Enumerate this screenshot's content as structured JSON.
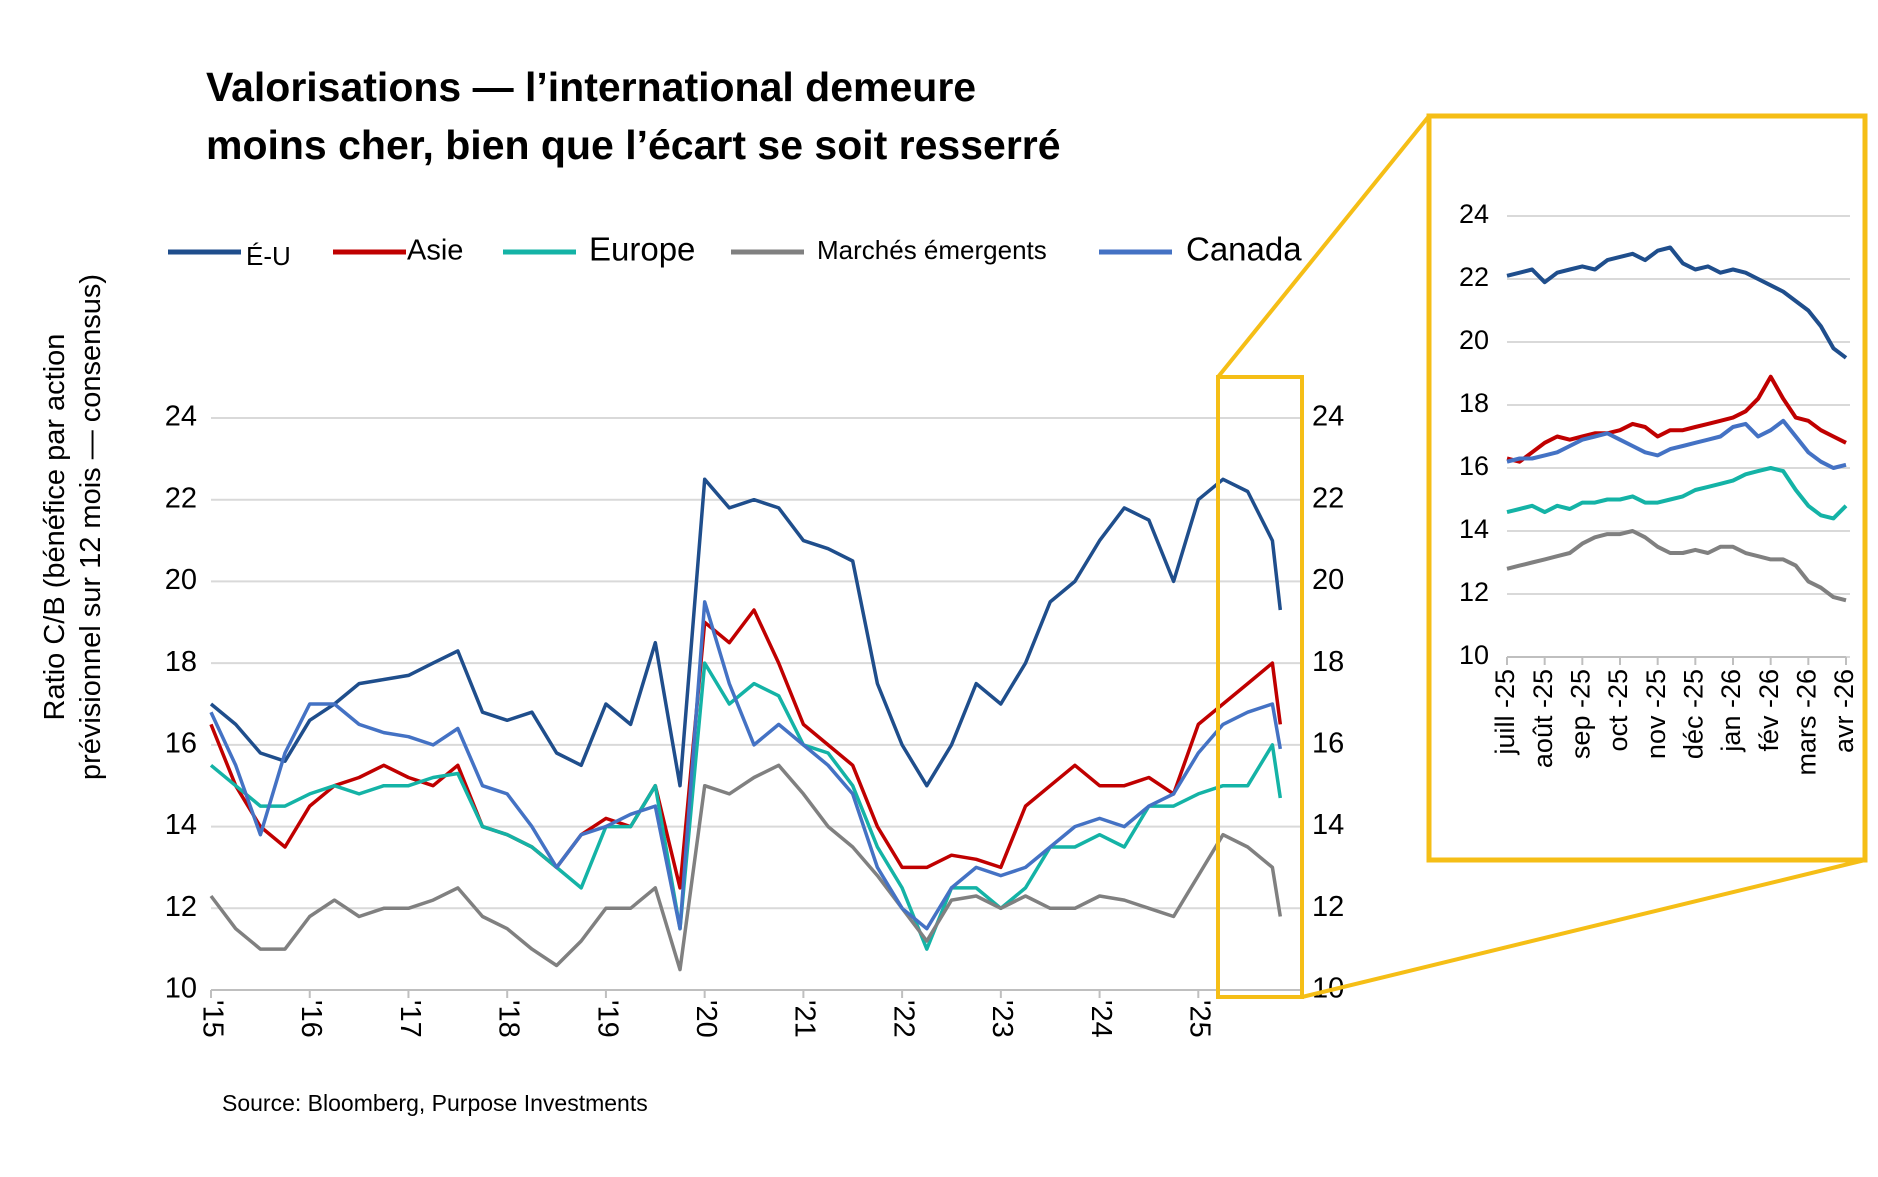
{
  "chart_data": [
    {
      "type": "line",
      "title": "Valorisations — l’international demeure\nmoins cher, bien que l’écart se soit resserré",
      "ylabel": "Ratio C/B (bénéfice par action\nprévisionnel sur 12 mois — consensus)",
      "source": "Source: Bloomberg, Purpose Investments",
      "x": [
        2015,
        2015.25,
        2015.5,
        2015.75,
        2016,
        2016.25,
        2016.5,
        2016.75,
        2017,
        2017.25,
        2017.5,
        2017.75,
        2018,
        2018.25,
        2018.5,
        2018.75,
        2019,
        2019.25,
        2019.5,
        2019.75,
        2020,
        2020.25,
        2020.5,
        2020.75,
        2021,
        2021.25,
        2021.5,
        2021.75,
        2022,
        2022.25,
        2022.5,
        2022.75,
        2023,
        2023.25,
        2023.5,
        2023.75,
        2024,
        2024.25,
        2024.5,
        2024.75,
        2025,
        2025.25,
        2025.5,
        2025.75,
        2025.83
      ],
      "xlim": [
        2015,
        2026.03
      ],
      "xticks": [
        {
          "value": 2015,
          "label": "'15"
        },
        {
          "value": 2016,
          "label": "'16"
        },
        {
          "value": 2017,
          "label": "'17"
        },
        {
          "value": 2018,
          "label": "'18"
        },
        {
          "value": 2019,
          "label": "'19"
        },
        {
          "value": 2020,
          "label": "'20"
        },
        {
          "value": 2021,
          "label": "'21"
        },
        {
          "value": 2022,
          "label": "'22"
        },
        {
          "value": 2023,
          "label": "'23"
        },
        {
          "value": 2024,
          "label": "'24"
        },
        {
          "value": 2025,
          "label": "'25"
        }
      ],
      "ylim": [
        10,
        24
      ],
      "yticks": [
        10,
        12,
        14,
        16,
        18,
        20,
        22,
        24
      ],
      "y2lim": [
        10,
        24
      ],
      "y2ticks": [
        10,
        12,
        14,
        16,
        18,
        20,
        22,
        24
      ],
      "grid": true,
      "series": [
        {
          "name": "É-U",
          "color": "#1f4e8c",
          "values": [
            17.0,
            16.5,
            15.8,
            15.6,
            16.6,
            17.0,
            17.5,
            17.6,
            17.7,
            18.0,
            18.3,
            16.8,
            16.6,
            16.8,
            15.8,
            15.5,
            17.0,
            16.5,
            18.5,
            15.0,
            22.5,
            21.8,
            22.0,
            21.8,
            21.0,
            20.8,
            20.5,
            17.5,
            16.0,
            15.0,
            16.0,
            17.5,
            17.0,
            18.0,
            19.5,
            20.0,
            21.0,
            21.8,
            21.5,
            20.0,
            22.0,
            22.5,
            22.2,
            21.0,
            19.3
          ]
        },
        {
          "name": "Asie",
          "color": "#c00000",
          "values": [
            16.5,
            15.0,
            14.0,
            13.5,
            14.5,
            15.0,
            15.2,
            15.5,
            15.2,
            15.0,
            15.5,
            14.0,
            13.8,
            13.5,
            13.0,
            13.8,
            14.2,
            14.0,
            15.0,
            12.5,
            19.0,
            18.5,
            19.3,
            18.0,
            16.5,
            16.0,
            15.5,
            14.0,
            13.0,
            13.0,
            13.3,
            13.2,
            13.0,
            14.5,
            15.0,
            15.5,
            15.0,
            15.0,
            15.2,
            14.8,
            16.5,
            17.0,
            17.5,
            18.0,
            16.5
          ]
        },
        {
          "name": "Europe",
          "color": "#14b3a6",
          "values": [
            15.5,
            15.0,
            14.5,
            14.5,
            14.8,
            15.0,
            14.8,
            15.0,
            15.0,
            15.2,
            15.3,
            14.0,
            13.8,
            13.5,
            13.0,
            12.5,
            14.0,
            14.0,
            15.0,
            11.5,
            18.0,
            17.0,
            17.5,
            17.2,
            16.0,
            15.8,
            15.0,
            13.5,
            12.5,
            11.0,
            12.5,
            12.5,
            12.0,
            12.5,
            13.5,
            13.5,
            13.8,
            13.5,
            14.5,
            14.5,
            14.8,
            15.0,
            15.0,
            16.0,
            14.7
          ]
        },
        {
          "name": "Marchés émergents",
          "color": "#808080",
          "values": [
            12.3,
            11.5,
            11.0,
            11.0,
            11.8,
            12.2,
            11.8,
            12.0,
            12.0,
            12.2,
            12.5,
            11.8,
            11.5,
            11.0,
            10.6,
            11.2,
            12.0,
            12.0,
            12.5,
            10.5,
            15.0,
            14.8,
            15.2,
            15.5,
            14.8,
            14.0,
            13.5,
            12.8,
            12.0,
            11.2,
            12.2,
            12.3,
            12.0,
            12.3,
            12.0,
            12.0,
            12.3,
            12.2,
            12.0,
            11.8,
            12.8,
            13.8,
            13.5,
            13.0,
            11.8
          ]
        },
        {
          "name": "Canada",
          "color": "#4472c4",
          "values": [
            16.8,
            15.5,
            13.8,
            15.8,
            17.0,
            17.0,
            16.5,
            16.3,
            16.2,
            16.0,
            16.4,
            15.0,
            14.8,
            14.0,
            13.0,
            13.8,
            14.0,
            14.3,
            14.5,
            11.5,
            19.5,
            17.5,
            16.0,
            16.5,
            16.0,
            15.5,
            14.8,
            13.0,
            12.0,
            11.5,
            12.5,
            13.0,
            12.8,
            13.0,
            13.5,
            14.0,
            14.2,
            14.0,
            14.5,
            14.8,
            15.8,
            16.5,
            16.8,
            17.0,
            15.9
          ]
        }
      ]
    },
    {
      "type": "line",
      "categories": [
        "juill -25",
        null,
        null,
        "août -25",
        null,
        null,
        "sep -25",
        null,
        null,
        "oct -25",
        null,
        null,
        "nov -25",
        null,
        null,
        "déc -25",
        null,
        null,
        "jan -26",
        null,
        null,
        "fév -26",
        null,
        null,
        "mars -26",
        null,
        null,
        "avr -26"
      ],
      "ylim": [
        10,
        24
      ],
      "yticks": [
        10,
        12,
        14,
        16,
        18,
        20,
        22,
        24
      ],
      "grid": true,
      "series": [
        {
          "color": "#1f4e8c",
          "values": [
            22.1,
            22.2,
            22.3,
            21.9,
            22.2,
            22.3,
            22.4,
            22.3,
            22.6,
            22.7,
            22.8,
            22.6,
            22.9,
            23.0,
            22.5,
            22.3,
            22.4,
            22.2,
            22.3,
            22.2,
            22.0,
            21.8,
            21.6,
            21.3,
            21.0,
            20.5,
            19.8,
            19.5
          ]
        },
        {
          "color": "#c00000",
          "values": [
            16.3,
            16.2,
            16.5,
            16.8,
            17.0,
            16.9,
            17.0,
            17.1,
            17.1,
            17.2,
            17.4,
            17.3,
            17.0,
            17.2,
            17.2,
            17.3,
            17.4,
            17.5,
            17.6,
            17.8,
            18.2,
            18.9,
            18.2,
            17.6,
            17.5,
            17.2,
            17.0,
            16.8
          ]
        },
        {
          "color": "#14b3a6",
          "values": [
            14.6,
            14.7,
            14.8,
            14.6,
            14.8,
            14.7,
            14.9,
            14.9,
            15.0,
            15.0,
            15.1,
            14.9,
            14.9,
            15.0,
            15.1,
            15.3,
            15.4,
            15.5,
            15.6,
            15.8,
            15.9,
            16.0,
            15.9,
            15.3,
            14.8,
            14.5,
            14.4,
            14.8
          ]
        },
        {
          "color": "#808080",
          "values": [
            12.8,
            12.9,
            13.0,
            13.1,
            13.2,
            13.3,
            13.6,
            13.8,
            13.9,
            13.9,
            14.0,
            13.8,
            13.5,
            13.3,
            13.3,
            13.4,
            13.3,
            13.5,
            13.5,
            13.3,
            13.2,
            13.1,
            13.1,
            12.9,
            12.4,
            12.2,
            11.9,
            11.8
          ]
        },
        {
          "color": "#4472c4",
          "values": [
            16.2,
            16.3,
            16.3,
            16.4,
            16.5,
            16.7,
            16.9,
            17.0,
            17.1,
            16.9,
            16.7,
            16.5,
            16.4,
            16.6,
            16.7,
            16.8,
            16.9,
            17.0,
            17.3,
            17.4,
            17.0,
            17.2,
            17.5,
            17.0,
            16.5,
            16.2,
            16.0,
            16.1
          ]
        }
      ]
    }
  ]
}
